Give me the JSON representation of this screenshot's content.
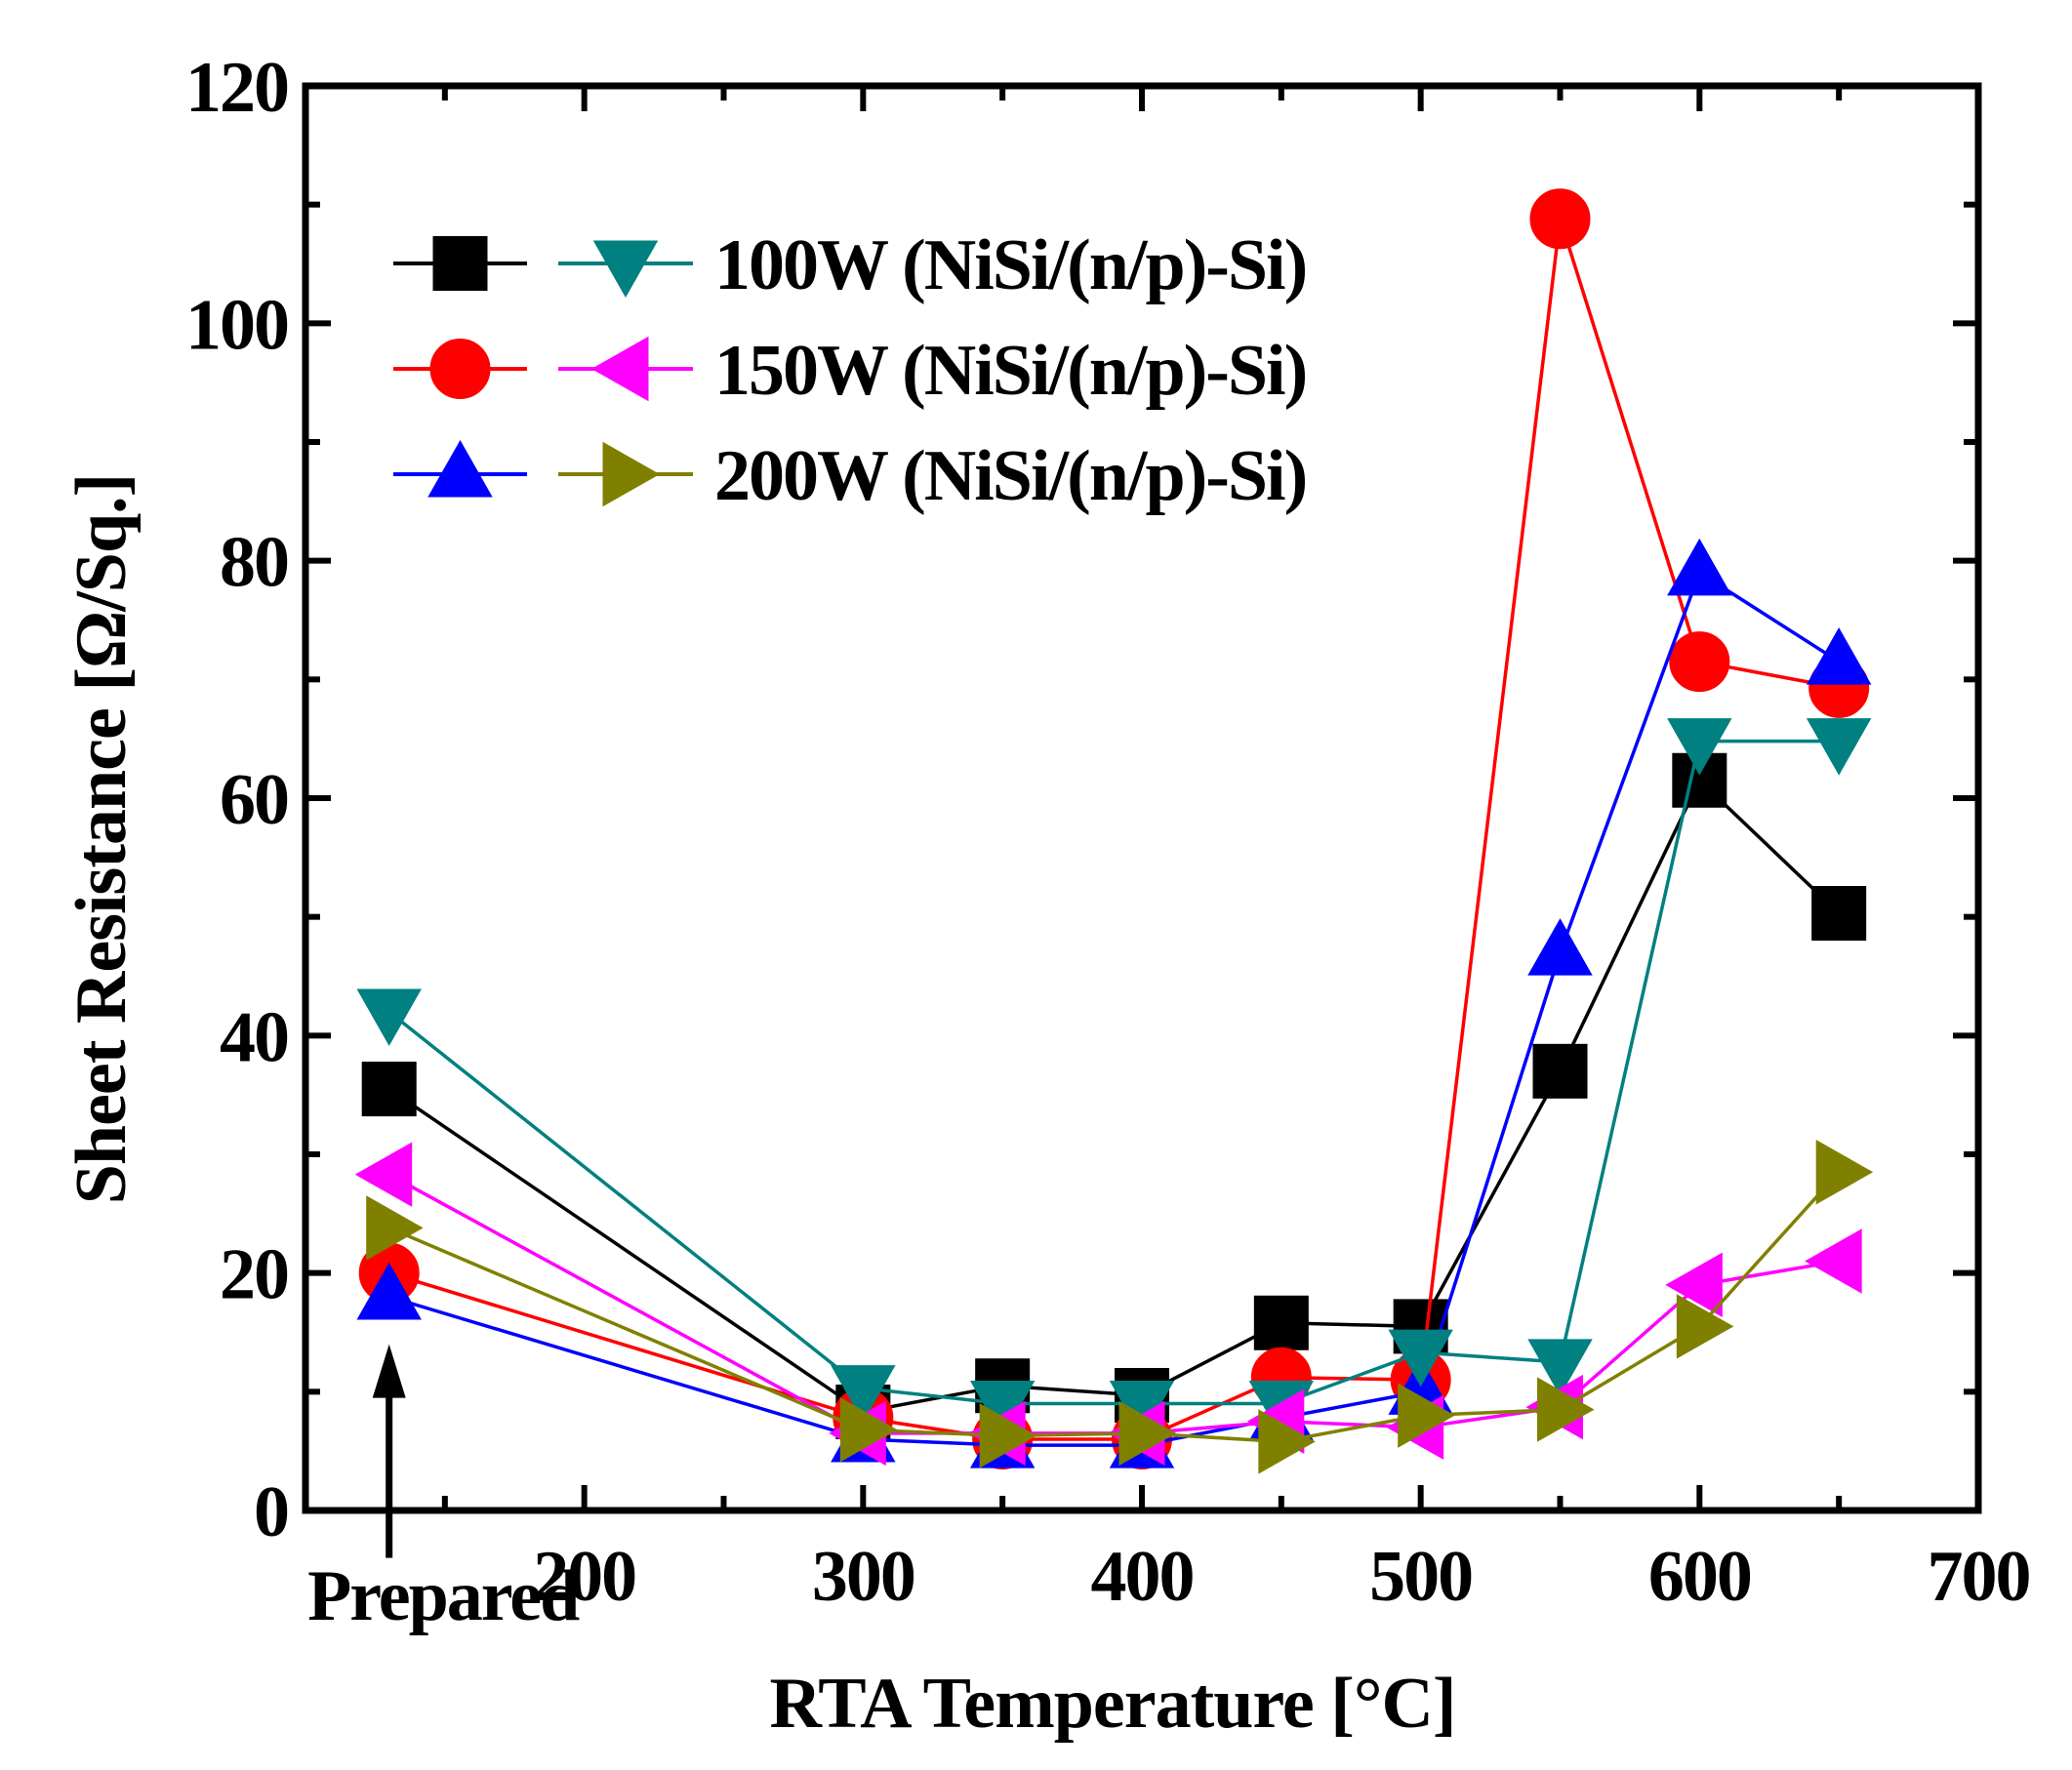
{
  "chart_data": {
    "type": "line",
    "title": "",
    "xlabel": "RTA Temperature [°C]",
    "ylabel": "Sheet Resistance [Ω/Sq.]",
    "xlim": [
      100,
      700
    ],
    "ylim": [
      0,
      120
    ],
    "x_ticks": [
      200,
      300,
      400,
      500,
      600,
      700
    ],
    "y_ticks": [
      0,
      20,
      40,
      60,
      80,
      100,
      120
    ],
    "x_ticks_minor": [
      100,
      150,
      200,
      250,
      300,
      350,
      400,
      450,
      500,
      550,
      600,
      650,
      700
    ],
    "y_ticks_minor": [
      10,
      30,
      50,
      70,
      90,
      110
    ],
    "grid": false,
    "x": [
      130,
      300,
      350,
      400,
      450,
      500,
      550,
      600,
      650
    ],
    "x_category_labels": [
      {
        "x": 130,
        "label": "Prepared"
      }
    ],
    "annotation": {
      "text": "Prepared",
      "x": 130,
      "arrow_from_y": -4,
      "arrow_to_y": 14
    },
    "legend": {
      "placement": "top-left",
      "entries": [
        "100W (NiSi/(n/p)-Si)",
        "150W (NiSi/(n/p)-Si)",
        "200W (NiSi/(n/p)-Si)"
      ]
    },
    "series": [
      {
        "name": "100W n-Si",
        "marker": "square",
        "color": "#000000",
        "values": [
          35.5,
          8.3,
          10.5,
          9.7,
          15.8,
          15.5,
          37,
          61.5,
          50.3
        ]
      },
      {
        "name": "150W n-Si",
        "marker": "circle",
        "color": "#ff0000",
        "values": [
          20,
          7.8,
          6,
          6,
          11.2,
          11,
          108.8,
          71.5,
          69.3
        ]
      },
      {
        "name": "200W n-Si",
        "marker": "triangle-up",
        "color": "#0000ff",
        "values": [
          18,
          6,
          5.5,
          5.5,
          7.8,
          10,
          47,
          79,
          71.5
        ]
      },
      {
        "name": "100W p-Si",
        "marker": "triangle-down",
        "color": "#008080",
        "values": [
          42,
          10.3,
          9,
          9,
          9,
          13.3,
          12.5,
          64.8,
          64.8
        ]
      },
      {
        "name": "150W p-Si",
        "marker": "triangle-left",
        "color": "#ff00ff",
        "values": [
          28.3,
          6.5,
          6.5,
          6.5,
          7.5,
          7,
          8.7,
          19,
          21
        ]
      },
      {
        "name": "200W p-Si",
        "marker": "triangle-right",
        "color": "#808000",
        "values": [
          23.8,
          6.8,
          6.3,
          6.5,
          5.8,
          8,
          8.5,
          15.5,
          28.5
        ]
      }
    ]
  }
}
